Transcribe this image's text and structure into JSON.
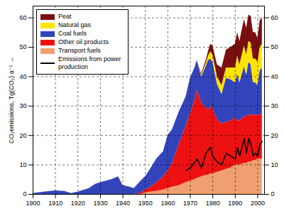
{
  "chart_data": {
    "type": "area",
    "stacked": true,
    "y_label": "CO₂emissions, Tg(CO₂) a⁻¹",
    "x": [
      1900,
      1905,
      1910,
      1914,
      1917,
      1920,
      1925,
      1928,
      1930,
      1935,
      1938,
      1940,
      1943,
      1945,
      1948,
      1950,
      1952,
      1955,
      1958,
      1960,
      1962,
      1965,
      1968,
      1970,
      1972,
      1973,
      1975,
      1977,
      1978,
      1979,
      1980,
      1982,
      1984,
      1986,
      1988,
      1990,
      1991,
      1992,
      1994,
      1995,
      1996,
      1997,
      1998,
      1999,
      2000,
      2001,
      2002
    ],
    "series": [
      {
        "name": "Transport fuels",
        "type": "area",
        "color": "#f0a070",
        "values": [
          0,
          0,
          0,
          0,
          0,
          0,
          0,
          0,
          0,
          0,
          0,
          0,
          0,
          0,
          0,
          0.5,
          0.8,
          1.0,
          1.5,
          2.0,
          2.5,
          3.0,
          4.0,
          4.5,
          5.0,
          5.5,
          6.0,
          6.5,
          6.5,
          7.0,
          7.0,
          7.5,
          8.0,
          8.5,
          9.0,
          10.0,
          10.0,
          10.0,
          10.5,
          10.5,
          11.0,
          11.0,
          11.5,
          11.5,
          12.0,
          12.0,
          12.0
        ]
      },
      {
        "name": "Other oil products",
        "type": "area",
        "color": "#ee1111",
        "values": [
          0,
          0,
          0,
          0,
          0,
          0,
          0,
          0,
          0,
          0,
          0,
          0,
          0,
          0,
          0.5,
          1.0,
          1.5,
          3.0,
          4.5,
          6.0,
          8.0,
          14.0,
          19.0,
          23.0,
          27.0,
          30.0,
          25.0,
          23.0,
          22.0,
          23.0,
          22.0,
          18.0,
          16.0,
          16.0,
          16.0,
          16.0,
          15.0,
          15.0,
          16.0,
          16.0,
          16.0,
          16.0,
          15.5,
          15.5,
          15.0,
          15.0,
          15.0
        ]
      },
      {
        "name": "Coal fuels",
        "type": "area",
        "color": "#3344bb",
        "values": [
          0.3,
          0.8,
          1.2,
          1.0,
          0.3,
          0.8,
          2.0,
          3.5,
          4.0,
          5.0,
          6.0,
          3.0,
          2.5,
          2.0,
          4.0,
          4.5,
          6.0,
          8.0,
          8.5,
          12.0,
          11.5,
          11.0,
          10.0,
          12.0,
          11.0,
          10.0,
          9.0,
          14.0,
          17.0,
          16.0,
          16.0,
          12.0,
          10.0,
          15.0,
          14.0,
          12.0,
          16.0,
          13.0,
          17.0,
          14.0,
          18.0,
          17.0,
          11.0,
          11.0,
          10.0,
          15.0,
          16.0
        ]
      },
      {
        "name": "Natural gas",
        "type": "area",
        "color": "#ffe400",
        "values": [
          0,
          0,
          0,
          0,
          0,
          0,
          0,
          0,
          0,
          0,
          0,
          0,
          0,
          0,
          0,
          0,
          0,
          0,
          0,
          0,
          0,
          0,
          0,
          0,
          0,
          0,
          0.5,
          1.0,
          1.5,
          2.5,
          2.5,
          2.5,
          3.0,
          3.5,
          4.0,
          5.0,
          6.0,
          6.0,
          7.0,
          7.0,
          7.0,
          7.5,
          8.0,
          8.0,
          8.0,
          8.0,
          8.0
        ]
      },
      {
        "name": "Peat",
        "type": "area",
        "color": "#7a0f0f",
        "values": [
          0,
          0,
          0,
          0,
          0,
          0,
          0,
          0,
          0,
          0,
          0,
          0,
          0,
          0,
          0,
          0,
          0,
          0,
          0,
          0,
          0,
          0,
          0,
          0,
          0,
          0,
          0.5,
          1.0,
          1.5,
          2.5,
          3.0,
          4.0,
          6.0,
          6.0,
          7.0,
          8.0,
          8.0,
          8.0,
          9.0,
          9.0,
          9.0,
          9.0,
          9.0,
          9.0,
          8.0,
          9.0,
          9.0
        ]
      },
      {
        "name": "Emissions from power production",
        "type": "line",
        "color": "#000000",
        "values": [
          null,
          null,
          null,
          null,
          null,
          null,
          null,
          null,
          null,
          null,
          null,
          null,
          null,
          null,
          null,
          null,
          null,
          null,
          null,
          null,
          null,
          null,
          8,
          9,
          11,
          12,
          9,
          14,
          15,
          16,
          13,
          11,
          10,
          14,
          13,
          12,
          16,
          13,
          19,
          14,
          19,
          17,
          13,
          14,
          13,
          17,
          18
        ]
      }
    ],
    "xlim": [
      1900,
      2003
    ],
    "xticks": [
      1900,
      1910,
      1920,
      1930,
      1940,
      1950,
      1960,
      1970,
      1980,
      1990,
      2000
    ],
    "ylim": [
      0,
      64
    ],
    "yticks": [
      0,
      10,
      20,
      30,
      40,
      50,
      60
    ],
    "grid": true,
    "legend": "upper left"
  }
}
